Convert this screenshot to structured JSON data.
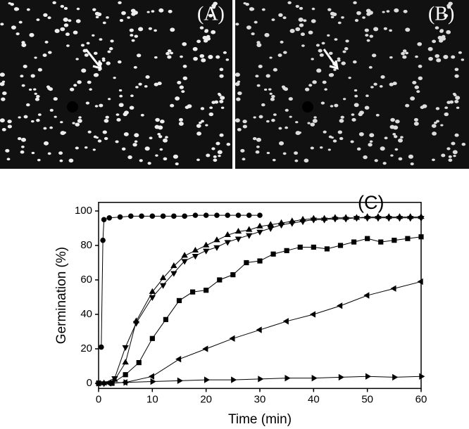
{
  "panels": {
    "a_label": "(A)",
    "b_label": "(B)"
  },
  "chart_data": {
    "type": "line",
    "panel_label": "(C)",
    "x_label": "Time (min)",
    "y_label": "Germination (%)",
    "xlim": [
      0,
      60
    ],
    "ylim": [
      -3,
      105
    ],
    "xticks": [
      0,
      10,
      20,
      30,
      40,
      50,
      60
    ],
    "yticks": [
      0,
      20,
      40,
      60,
      80,
      100
    ],
    "series": [
      {
        "marker": "circle",
        "color": "#000000",
        "x": [
          0.5,
          0.8,
          1,
          2,
          4,
          6,
          8,
          10,
          12,
          14,
          16,
          18,
          20,
          22,
          24,
          26,
          28,
          30
        ],
        "values": [
          21,
          83,
          95,
          96,
          96.5,
          97,
          97,
          97,
          97,
          97,
          97,
          97.5,
          97.5,
          97.5,
          97.5,
          97.5,
          97.5,
          97.5
        ]
      },
      {
        "marker": "triangle-up",
        "color": "#000000",
        "x": [
          1,
          3,
          5,
          7,
          10,
          12,
          14,
          16,
          18,
          20,
          22,
          24,
          26,
          28,
          30,
          32,
          34,
          36,
          38,
          40,
          42,
          44,
          46,
          48,
          50,
          52,
          54,
          56,
          58,
          60
        ],
        "values": [
          0,
          2,
          12,
          36,
          53,
          61,
          68,
          74,
          77,
          80,
          83,
          86,
          88,
          89,
          91,
          92,
          93,
          94,
          95,
          95.5,
          95.5,
          96,
          96,
          96,
          96.5,
          96.5,
          96.5,
          96.5,
          96.5,
          96.5
        ]
      },
      {
        "marker": "triangle-down",
        "color": "#000000",
        "x": [
          1,
          3,
          5,
          7,
          10,
          12,
          14,
          16,
          18,
          20,
          22,
          24,
          26,
          28,
          30,
          32,
          34,
          36,
          38,
          40,
          42,
          44,
          46,
          48,
          50,
          52,
          54,
          56,
          58,
          60
        ],
        "values": [
          0,
          3,
          21,
          35,
          50,
          57,
          64,
          71,
          74,
          77,
          79,
          82,
          84,
          86,
          88,
          90,
          92,
          93,
          94,
          95,
          95,
          95.5,
          95.5,
          96,
          96,
          96,
          96,
          96,
          96,
          96
        ]
      },
      {
        "marker": "square",
        "color": "#000000",
        "x": [
          0,
          2.5,
          5,
          7.5,
          10,
          12.5,
          15,
          17.5,
          20,
          22.5,
          25,
          27.5,
          30,
          32.5,
          35,
          37.5,
          40,
          42.5,
          45,
          47.5,
          50,
          52.5,
          55,
          57.5,
          60
        ],
        "values": [
          0,
          0,
          5,
          12,
          26,
          37,
          48,
          53,
          54,
          60,
          63,
          70,
          71,
          75,
          77,
          79,
          79,
          78,
          80,
          82,
          84,
          82,
          83,
          84,
          85
        ]
      },
      {
        "marker": "triangle-left",
        "color": "#000000",
        "x": [
          0,
          2,
          5,
          10,
          15,
          20,
          25,
          30,
          35,
          40,
          45,
          50,
          55,
          60
        ],
        "values": [
          0,
          0,
          0.5,
          4,
          14,
          20,
          26,
          31,
          36,
          40,
          45,
          51,
          55,
          59
        ]
      },
      {
        "marker": "triangle-right",
        "color": "#000000",
        "x": [
          0,
          5,
          10,
          15,
          20,
          25,
          30,
          35,
          40,
          45,
          50,
          55,
          60
        ],
        "values": [
          0,
          0.5,
          1,
          1.5,
          2,
          2,
          2.5,
          3,
          3,
          3.5,
          4,
          3.5,
          4
        ]
      }
    ]
  }
}
